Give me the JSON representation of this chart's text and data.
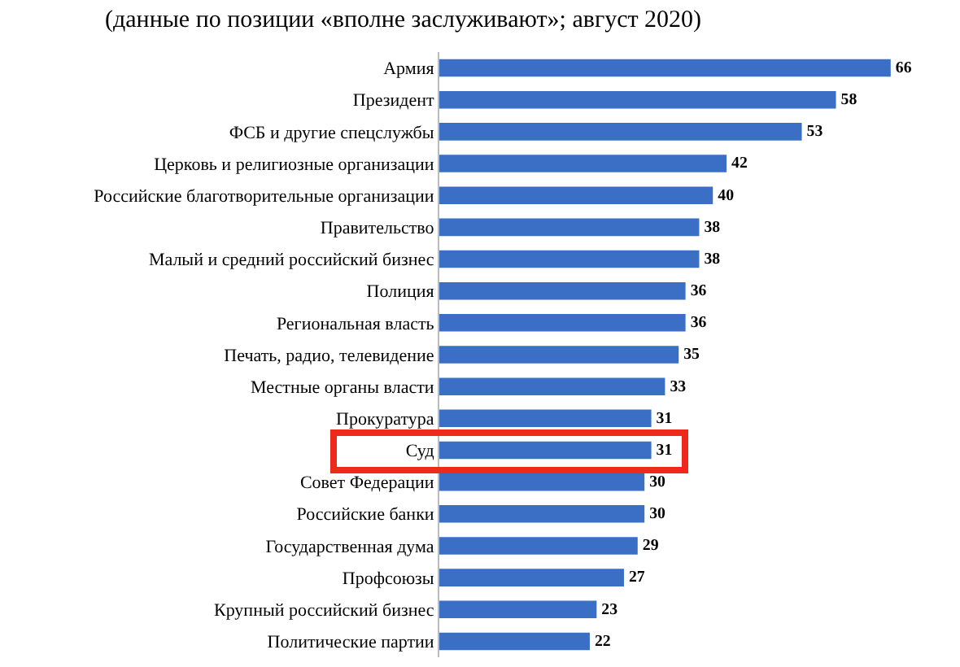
{
  "chart_data": {
    "type": "bar",
    "orientation": "horizontal",
    "title": "(данные по позиции «вполне заслуживают»; август 2020)",
    "categories": [
      "Армия",
      "Президент",
      "ФСБ и другие спецслужбы",
      "Церковь и религиозные организации",
      "Российские благотворительные организации",
      "Правительство",
      "Малый и средний российский бизнес",
      "Полиция",
      "Региональная власть",
      "Печать, радио, телевидение",
      "Местные органы власти",
      "Прокуратура",
      "Суд",
      "Совет Федерации",
      "Российские банки",
      "Государственная дума",
      "Профсоюзы",
      "Крупный российский бизнес",
      "Политические партии"
    ],
    "values": [
      66,
      58,
      53,
      42,
      40,
      38,
      38,
      36,
      36,
      35,
      33,
      31,
      31,
      30,
      30,
      29,
      27,
      23,
      22
    ],
    "color": "#3b6fc5",
    "data_labels": true,
    "grid": false,
    "legend": false,
    "tick_labels": "y"
  }
}
